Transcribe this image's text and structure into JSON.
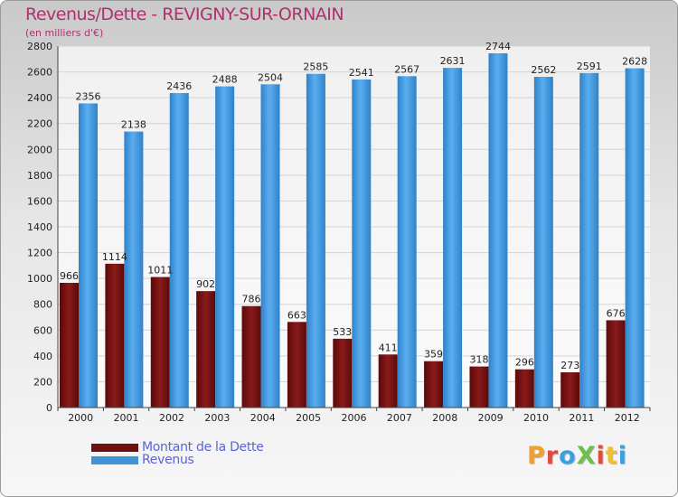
{
  "title": "Revenus/Dette - REVIGNY-SUR-ORNAIN",
  "subtitle": "(en milliers d'€)",
  "logo": {
    "text": "ProXiti",
    "colors": [
      "#f0a030",
      "#e24a3c",
      "#3aa0e0",
      "#6cc04a",
      "#e24a3c",
      "#f0c030",
      "#3aa0e0"
    ]
  },
  "colors": {
    "dette": "#7a1414",
    "revenus": "#3f94d8",
    "title": "#b0306a"
  },
  "chart_data": {
    "type": "bar",
    "title": "Revenus/Dette - REVIGNY-SUR-ORNAIN",
    "subtitle": "(en milliers d'€)",
    "categories": [
      "2000",
      "2001",
      "2002",
      "2003",
      "2004",
      "2005",
      "2006",
      "2007",
      "2008",
      "2009",
      "2010",
      "2011",
      "2012"
    ],
    "series": [
      {
        "name": "Montant de la Dette",
        "values": [
          966,
          1114,
          1011,
          902,
          786,
          663,
          533,
          411,
          359,
          318,
          296,
          273,
          676
        ]
      },
      {
        "name": "Revenus",
        "values": [
          2356,
          2138,
          2436,
          2488,
          2504,
          2585,
          2541,
          2567,
          2631,
          2744,
          2562,
          2591,
          2628
        ]
      }
    ],
    "ylim": [
      0,
      2800
    ],
    "yticks": [
      0,
      200,
      400,
      600,
      800,
      1000,
      1200,
      1400,
      1600,
      1800,
      2000,
      2200,
      2400,
      2600,
      2800
    ],
    "grid": true,
    "legend": "bottom-left"
  }
}
